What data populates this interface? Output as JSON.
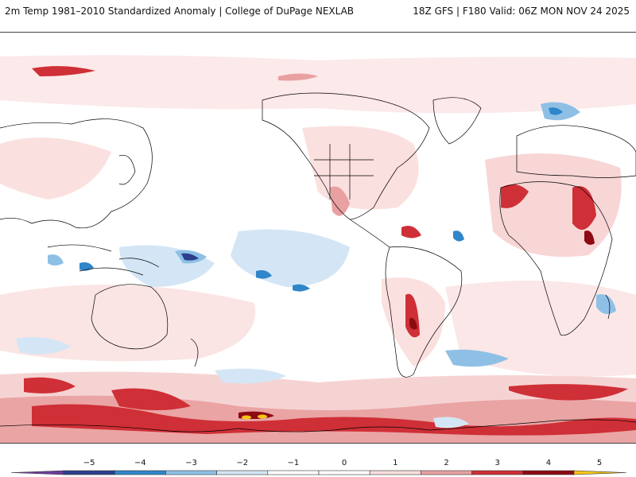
{
  "header": {
    "left_title": "2m Temp 1981–2010 Standardized Anomaly | College of DuPage NEXLAB",
    "right_title": "18Z GFS | F180 Valid: 06Z MON NOV 24 2025"
  },
  "map": {
    "projection": "equirectangular",
    "center_longitude": -120,
    "background": "#ffffff",
    "coastline_color": "#000000"
  },
  "colorbar": {
    "ticks": [
      "−5",
      "−4",
      "−3",
      "−2",
      "−1",
      "0",
      "1",
      "2",
      "3",
      "4",
      "5"
    ],
    "colors": [
      "#6a3d9a",
      "#2b3f8c",
      "#2f86c9",
      "#8ec0e6",
      "#d4e6f5",
      "#ffffff",
      "#ffffff",
      "#f7dede",
      "#e9a0a0",
      "#cf2f36",
      "#8c0a12",
      "#f5c518"
    ]
  }
}
